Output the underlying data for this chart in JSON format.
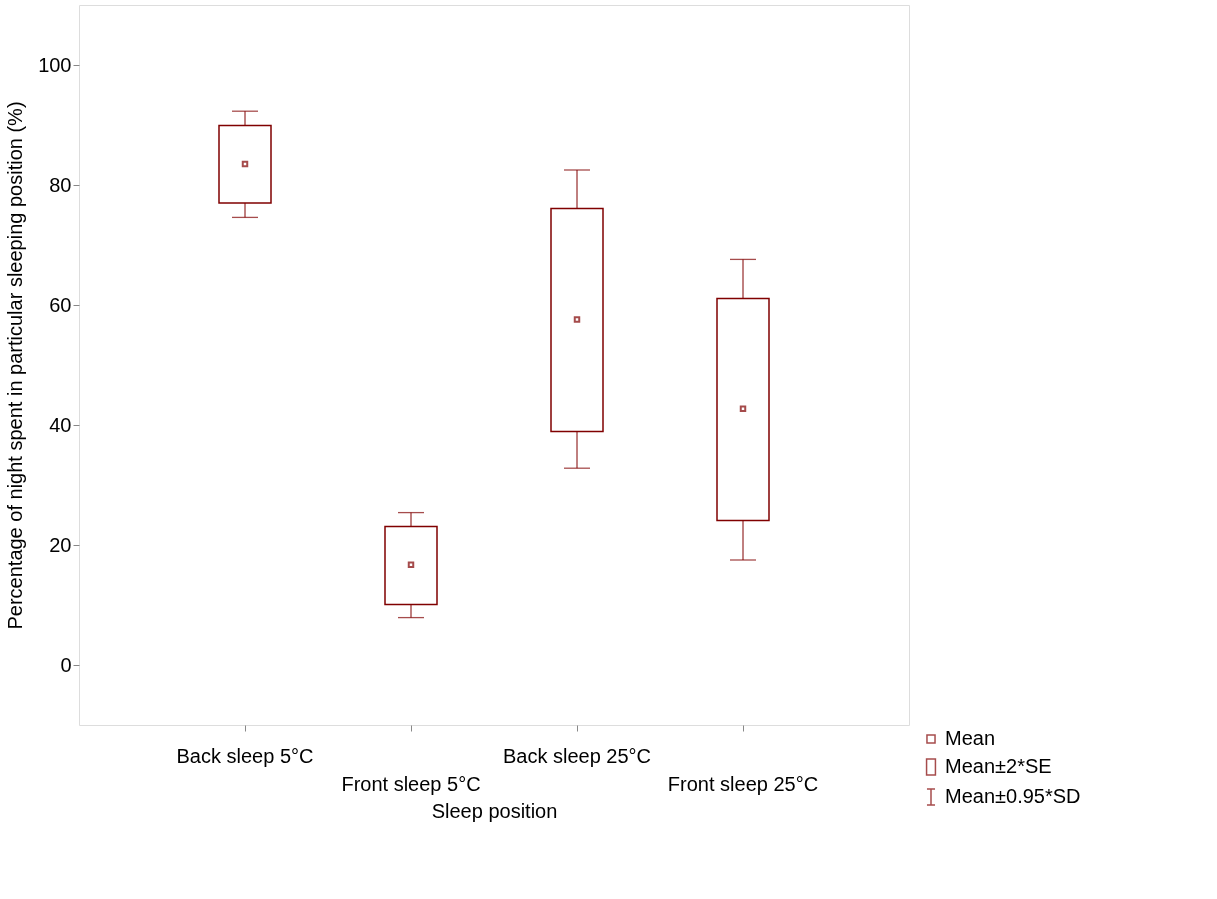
{
  "chart_data": {
    "type": "box",
    "xlabel": "Sleep position",
    "ylabel": "Percentage of night spent in particular sleeping position (%)",
    "categories": [
      "Back sleep 5°C",
      "Front sleep 5°C",
      "Back sleep 25°C",
      "Front sleep 25°C"
    ],
    "boxes": [
      {
        "low": 74.6,
        "q1": 77.0,
        "median": 83.5,
        "q3": 89.9,
        "high": 92.3
      },
      {
        "low": 7.9,
        "q1": 10.1,
        "median": 16.7,
        "q3": 23.1,
        "high": 25.4
      },
      {
        "low": 32.8,
        "q1": 38.9,
        "median": 57.6,
        "q3": 76.1,
        "high": 82.5
      },
      {
        "low": 17.5,
        "q1": 24.1,
        "median": 42.7,
        "q3": 61.1,
        "high": 67.6
      }
    ],
    "color": "#800000",
    "ylim": [
      -10,
      110
    ],
    "yticks": [
      0,
      20,
      40,
      60,
      80,
      100
    ],
    "grid": false,
    "annotations": [
      "Mean",
      "Mean±2*SE",
      "Mean±0.95*SD"
    ]
  }
}
